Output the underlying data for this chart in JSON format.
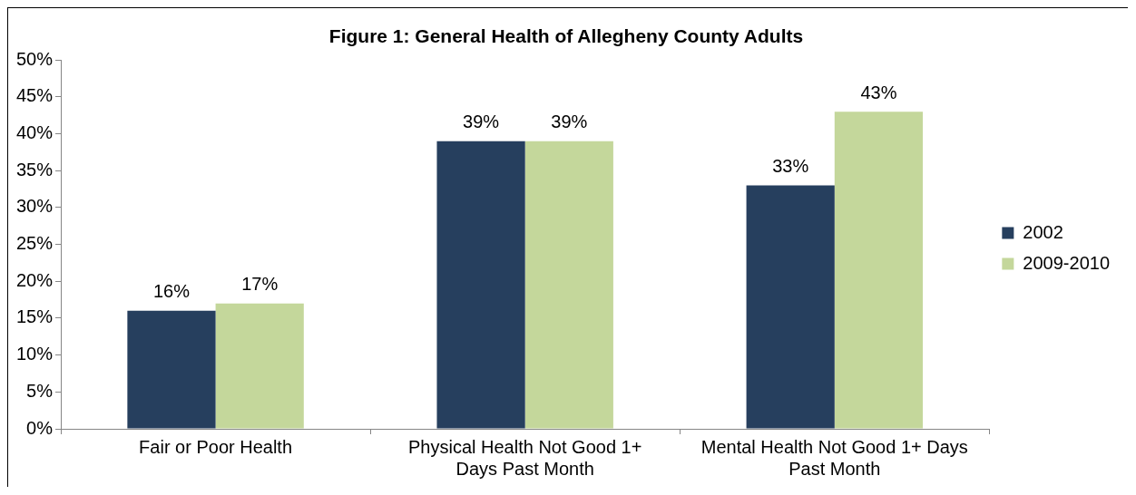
{
  "chart_data": {
    "type": "bar",
    "title": "Figure 1: General Health of Allegheny County Adults",
    "categories": [
      "Fair or Poor Health",
      "Physical Health Not Good 1+ Days Past Month",
      "Mental Health Not Good 1+ Days Past Month"
    ],
    "series": [
      {
        "name": "2002",
        "color": "#263f5e",
        "values": [
          16,
          39,
          33
        ]
      },
      {
        "name": "2009-2010",
        "color": "#c4d79b",
        "values": [
          17,
          39,
          43
        ]
      }
    ],
    "ylim": [
      0,
      50
    ],
    "yticks": [
      {
        "value": 0,
        "label": "0%"
      },
      {
        "value": 5,
        "label": "5%"
      },
      {
        "value": 10,
        "label": "10%"
      },
      {
        "value": 15,
        "label": "15%"
      },
      {
        "value": 20,
        "label": "20%"
      },
      {
        "value": 25,
        "label": "25%"
      },
      {
        "value": 30,
        "label": "30%"
      },
      {
        "value": 35,
        "label": "35%"
      },
      {
        "value": 40,
        "label": "40%"
      },
      {
        "value": 45,
        "label": "45%"
      },
      {
        "value": 50,
        "label": "50%"
      }
    ],
    "value_labels": [
      [
        "16%",
        "39%",
        "33%"
      ],
      [
        "17%",
        "39%",
        "43%"
      ]
    ],
    "grid": false,
    "legend": "right"
  }
}
